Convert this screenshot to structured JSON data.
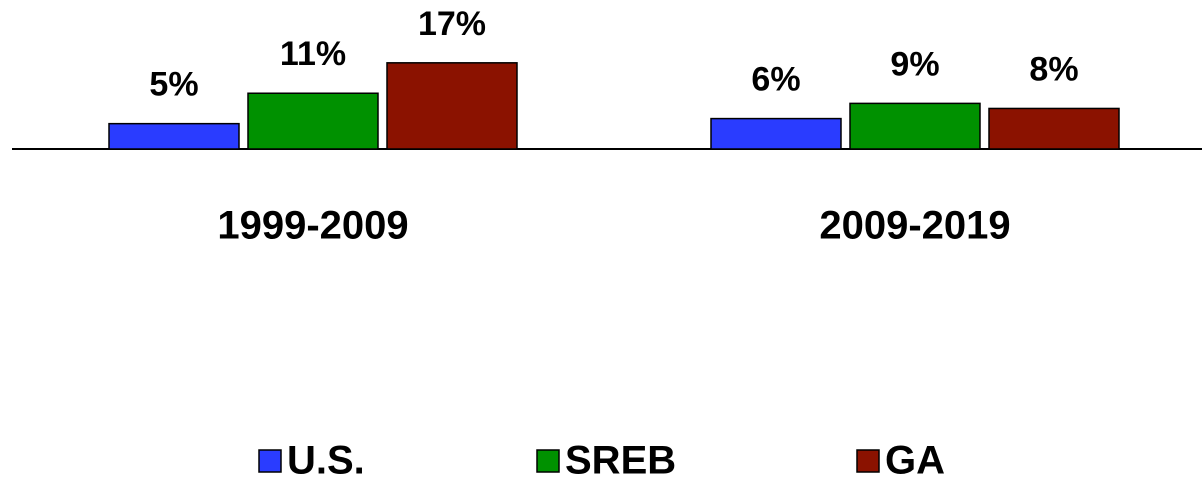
{
  "chart_data": {
    "type": "bar",
    "categories": [
      "1999-2009",
      "2009-2019"
    ],
    "series": [
      {
        "name": "U.S.",
        "color": "#2a3cff",
        "values": [
          5,
          6
        ],
        "value_labels": [
          "5%",
          "6%"
        ]
      },
      {
        "name": "SREB",
        "color": "#009100",
        "values": [
          11,
          9
        ],
        "value_labels": [
          "11%",
          "9%"
        ]
      },
      {
        "name": "GA",
        "color": "#8b1200",
        "values": [
          17,
          8
        ],
        "value_labels": [
          "17%",
          "8%"
        ]
      }
    ],
    "ylim": [
      0,
      29
    ],
    "legend": "bottom"
  }
}
